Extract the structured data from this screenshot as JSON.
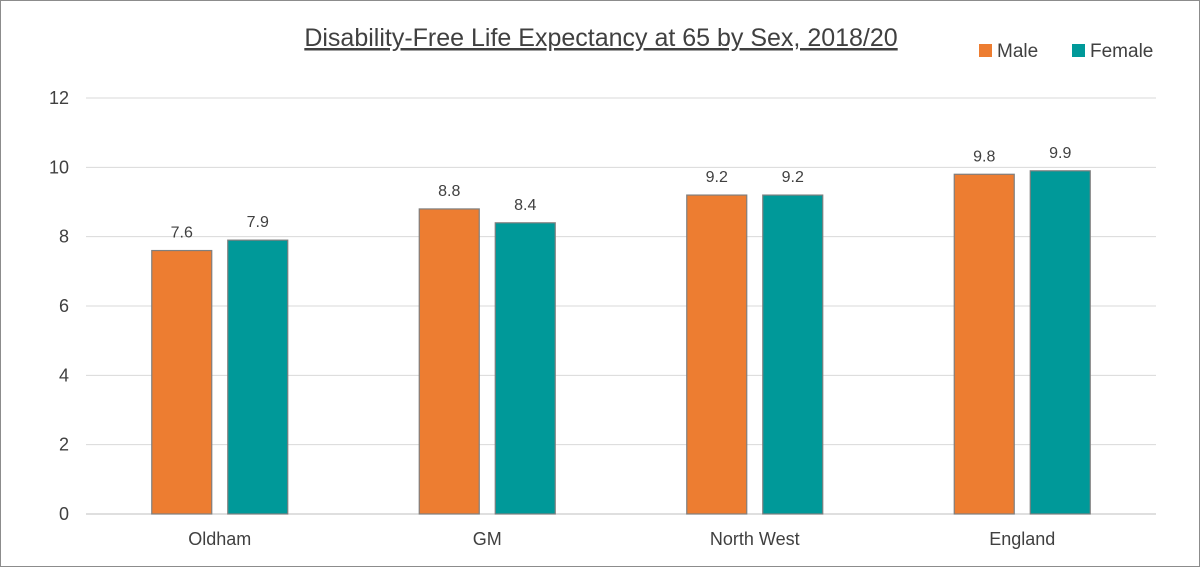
{
  "chart_data": {
    "type": "bar",
    "title": "Disability-Free Life Expectancy at 65 by Sex, 2018/20",
    "xlabel": "",
    "ylabel": "",
    "categories": [
      "Oldham",
      "GM",
      "North West",
      "England"
    ],
    "series": [
      {
        "name": "Male",
        "values": [
          7.6,
          8.8,
          9.2,
          9.8
        ],
        "color": "#ED7D31"
      },
      {
        "name": "Female",
        "values": [
          7.9,
          8.4,
          9.2,
          9.9
        ],
        "color": "#009999"
      }
    ],
    "ylim": [
      0,
      12
    ],
    "yticks": [
      0,
      2,
      4,
      6,
      8,
      10,
      12
    ],
    "grid": true,
    "legend": "top-right",
    "data_labels": true
  }
}
